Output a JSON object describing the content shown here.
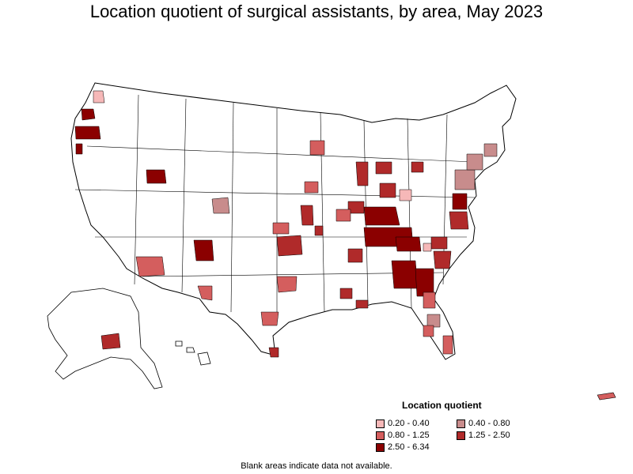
{
  "title": "Location quotient of surgical assistants, by area, May 2023",
  "legend": {
    "title": "Location quotient",
    "items": [
      {
        "label": "0.20 - 0.40",
        "color": "#f6b8b8"
      },
      {
        "label": "0.40 - 0.80",
        "color": "#c88c8c"
      },
      {
        "label": "0.80 - 1.25",
        "color": "#d45e5e"
      },
      {
        "label": "1.25 - 2.50",
        "color": "#b02a2a"
      },
      {
        "label": "2.50 - 6.34",
        "color": "#8b0000"
      }
    ]
  },
  "footnote": "Blank areas indicate data not available."
}
